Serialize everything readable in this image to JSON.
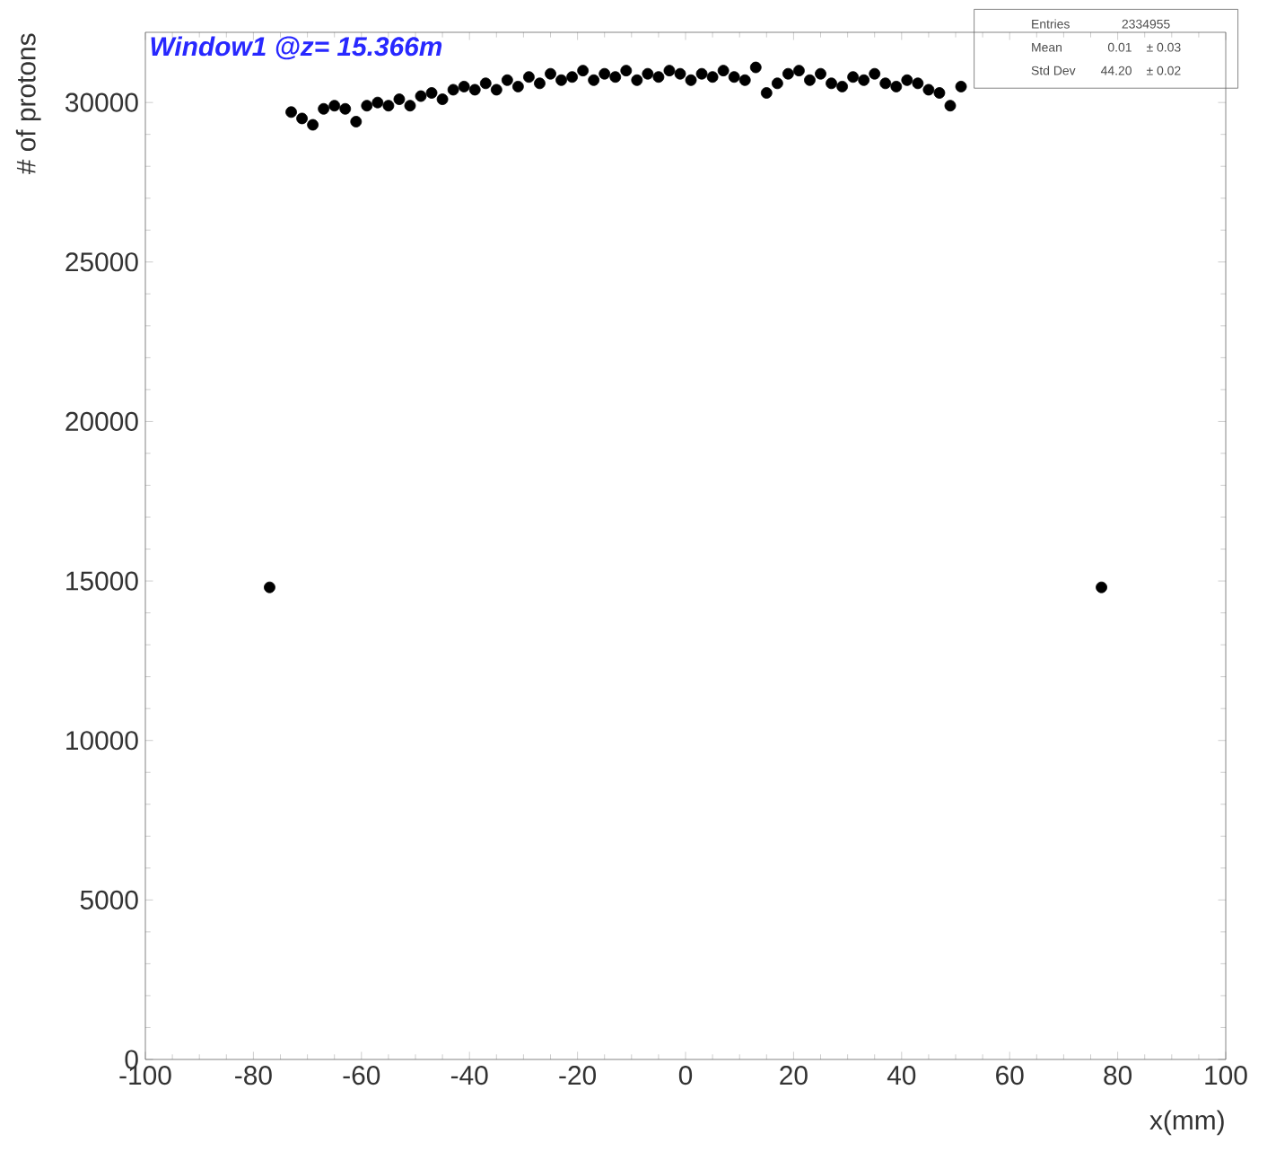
{
  "chart_data": {
    "type": "scatter",
    "title": "Window1 @z= 15.366m",
    "xlabel": "x(mm)",
    "ylabel": "# of protons",
    "annotations": [
      "Entries",
      "2334955",
      "Mean",
      "0.01",
      "± 0.03",
      "Std Dev",
      "44.20",
      "± 0.02"
    ],
    "x": [
      -77,
      -73,
      -71,
      -69,
      -67,
      -65,
      -63,
      -61,
      -59,
      -57,
      -55,
      -53,
      -51,
      -49,
      -47,
      -45,
      -43,
      -41,
      -39,
      -37,
      -35,
      -33,
      -31,
      -29,
      -27,
      -25,
      -23,
      -21,
      -19,
      -17,
      -15,
      -13,
      -11,
      -9,
      -7,
      -5,
      -3,
      -1,
      1,
      3,
      5,
      7,
      9,
      11,
      13,
      15,
      17,
      19,
      21,
      23,
      25,
      27,
      29,
      31,
      33,
      35,
      37,
      39,
      41,
      43,
      45,
      47,
      49,
      51,
      77
    ],
    "values": [
      14800,
      29700,
      29500,
      29300,
      29800,
      29900,
      29800,
      29400,
      29900,
      30000,
      29900,
      30100,
      29900,
      30200,
      30300,
      30100,
      30400,
      30500,
      30400,
      30600,
      30400,
      30700,
      30500,
      30800,
      30600,
      30900,
      30700,
      30800,
      31000,
      30700,
      30900,
      30800,
      31000,
      30700,
      30900,
      30800,
      31000,
      30900,
      30700,
      30900,
      30800,
      31000,
      30800,
      30700,
      31100,
      30300,
      30600,
      30900,
      31000,
      30700,
      30900,
      30600,
      30500,
      30800,
      30700,
      30900,
      30600,
      30500,
      30700,
      30600,
      30400,
      30300,
      29900,
      30500,
      14800
    ],
    "color": "#000000",
    "xlim": [
      -100,
      100
    ],
    "ylim": [
      0,
      32200
    ],
    "xticks": [
      -100,
      -80,
      -60,
      -40,
      -20,
      0,
      20,
      40,
      60,
      80,
      100
    ],
    "yticks": [
      0,
      5000,
      10000,
      15000,
      20000,
      25000,
      30000
    ]
  }
}
